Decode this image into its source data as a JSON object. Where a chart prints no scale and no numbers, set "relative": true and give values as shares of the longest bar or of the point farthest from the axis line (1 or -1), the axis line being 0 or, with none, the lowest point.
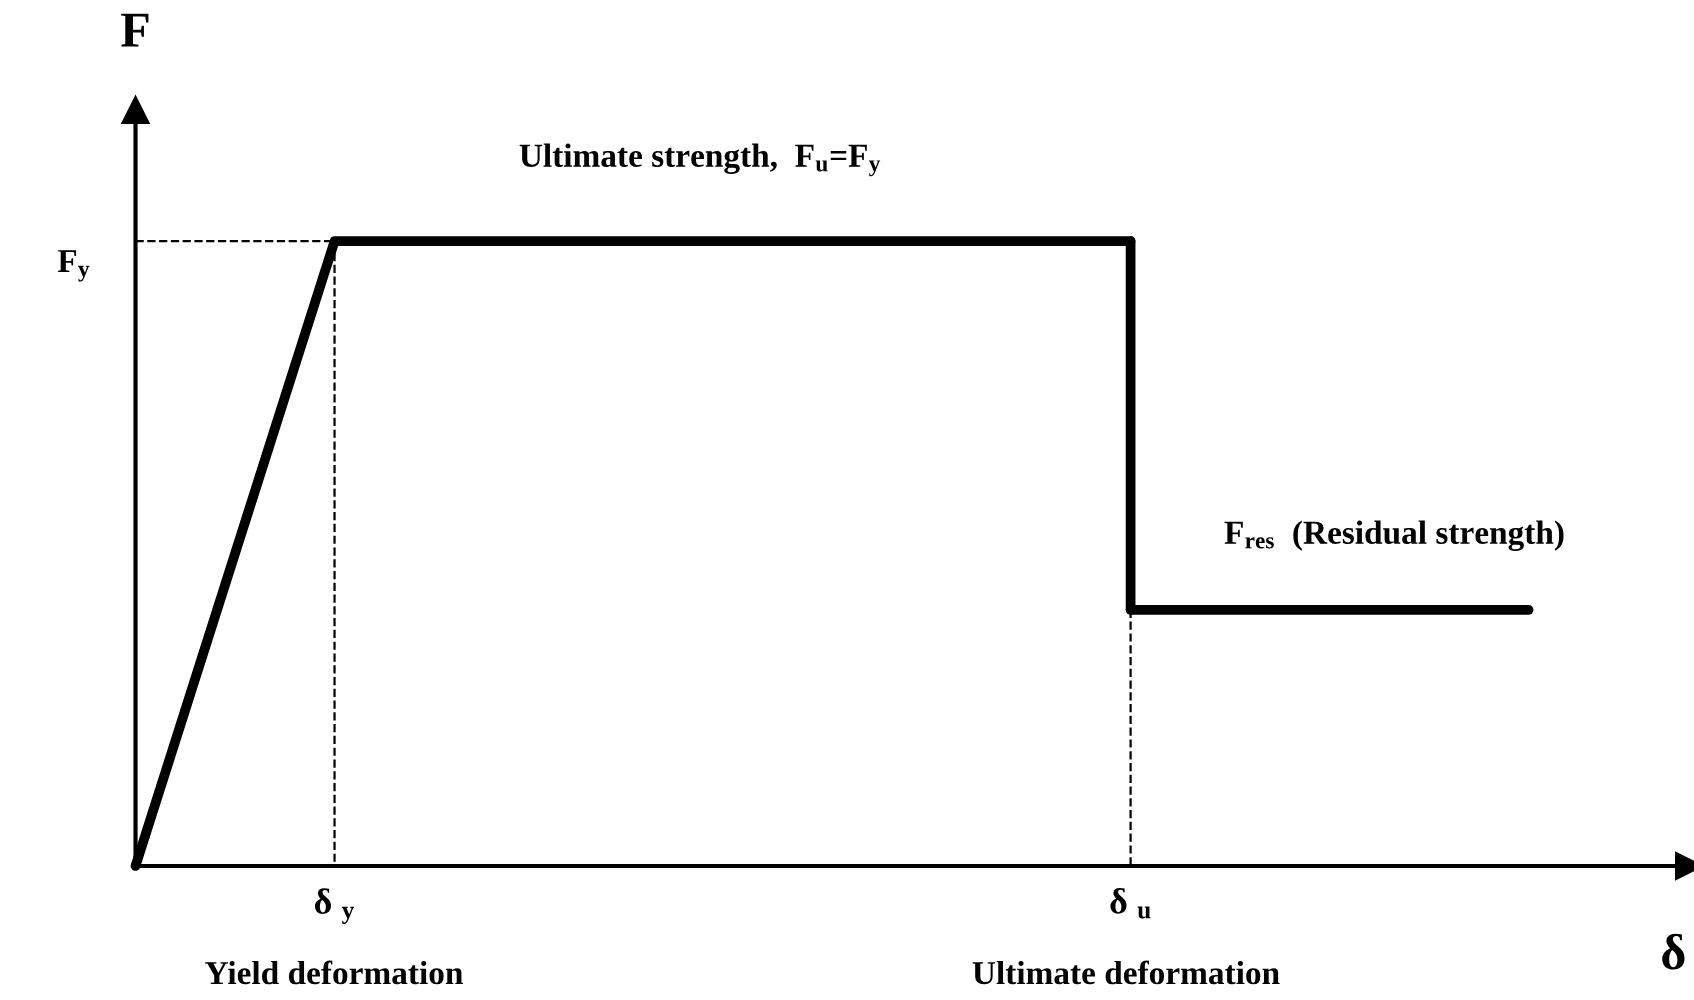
{
  "chart_data": {
    "type": "line",
    "relative": true,
    "xlabel": "δ",
    "ylabel": "F",
    "categories": [
      null,
      "δ $_{y}$",
      null,
      null,
      null,
      "δ $_{u}$",
      null,
      null
    ],
    "series": [
      {
        "color": "#000000",
        "values": [
          0,
          1,
          1,
          1,
          1,
          1,
          null,
          null
        ]
      },
      {
        "color": "#000000",
        "x": [
          "δ $_{u}$",
          "δ $_{u}$"
        ],
        "values": [
          1,
          0.41
        ]
      },
      {
        "color": "#000000",
        "values": [
          null,
          null,
          null,
          null,
          null,
          0.41,
          0.41,
          0.41
        ]
      },
      {
        "color": "#000000",
        "values": [
          1,
          1,
          null,
          null,
          null,
          null,
          null,
          null
        ],
        "line_style": "dashed"
      },
      {
        "color": "#000000",
        "x": [
          "δ $_{y}$",
          "δ $_{y}$"
        ],
        "values": [
          1,
          0
        ],
        "line_style": "dashed"
      },
      {
        "color": "#000000",
        "x": [
          "δ $_{u}$",
          "δ $_{u}$"
        ],
        "values": [
          0.41,
          0
        ],
        "line_style": "dashed"
      }
    ],
    "annotations": [
      "F$_{y}$",
      "Ultimate strength,  F$_{u}$=F$_{y}$",
      "F$_{res}$  (Residual strength)",
      "Yield deformation",
      "Ultimate deformation"
    ],
    "grid": false,
    "legend": false,
    "marker": "none",
    "line_style": "solid"
  }
}
